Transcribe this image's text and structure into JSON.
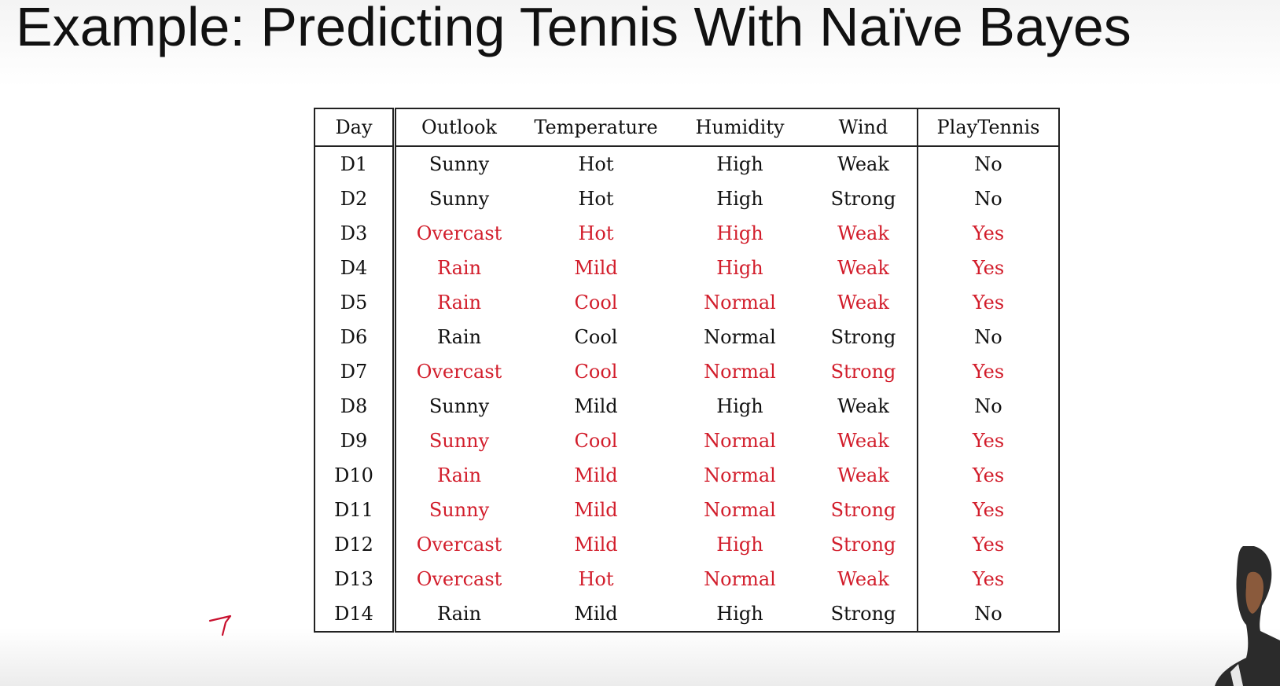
{
  "slide": {
    "title": "Example: Predicting Tennis With Naïve Bayes"
  },
  "table": {
    "headers": [
      "Day",
      "Outlook",
      "Temperature",
      "Humidity",
      "Wind",
      "PlayTennis"
    ],
    "rows": [
      {
        "day": "D1",
        "outlook": "Sunny",
        "temperature": "Hot",
        "humidity": "High",
        "wind": "Weak",
        "play": "No"
      },
      {
        "day": "D2",
        "outlook": "Sunny",
        "temperature": "Hot",
        "humidity": "High",
        "wind": "Strong",
        "play": "No"
      },
      {
        "day": "D3",
        "outlook": "Overcast",
        "temperature": "Hot",
        "humidity": "High",
        "wind": "Weak",
        "play": "Yes"
      },
      {
        "day": "D4",
        "outlook": "Rain",
        "temperature": "Mild",
        "humidity": "High",
        "wind": "Weak",
        "play": "Yes"
      },
      {
        "day": "D5",
        "outlook": "Rain",
        "temperature": "Cool",
        "humidity": "Normal",
        "wind": "Weak",
        "play": "Yes"
      },
      {
        "day": "D6",
        "outlook": "Rain",
        "temperature": "Cool",
        "humidity": "Normal",
        "wind": "Strong",
        "play": "No"
      },
      {
        "day": "D7",
        "outlook": "Overcast",
        "temperature": "Cool",
        "humidity": "Normal",
        "wind": "Strong",
        "play": "Yes"
      },
      {
        "day": "D8",
        "outlook": "Sunny",
        "temperature": "Mild",
        "humidity": "High",
        "wind": "Weak",
        "play": "No"
      },
      {
        "day": "D9",
        "outlook": "Sunny",
        "temperature": "Cool",
        "humidity": "Normal",
        "wind": "Weak",
        "play": "Yes"
      },
      {
        "day": "D10",
        "outlook": "Rain",
        "temperature": "Mild",
        "humidity": "Normal",
        "wind": "Weak",
        "play": "Yes"
      },
      {
        "day": "D11",
        "outlook": "Sunny",
        "temperature": "Mild",
        "humidity": "Normal",
        "wind": "Strong",
        "play": "Yes"
      },
      {
        "day": "D12",
        "outlook": "Overcast",
        "temperature": "Mild",
        "humidity": "High",
        "wind": "Strong",
        "play": "Yes"
      },
      {
        "day": "D13",
        "outlook": "Overcast",
        "temperature": "Hot",
        "humidity": "Normal",
        "wind": "Weak",
        "play": "Yes"
      },
      {
        "day": "D14",
        "outlook": "Rain",
        "temperature": "Mild",
        "humidity": "High",
        "wind": "Strong",
        "play": "No"
      }
    ]
  },
  "colors": {
    "positive_text": "#d21d2b",
    "default_text": "#111111"
  },
  "decorations": {
    "pen_mark_icon": "pen-stroke-icon",
    "presenter_icon": "presenter-webcam-icon"
  }
}
